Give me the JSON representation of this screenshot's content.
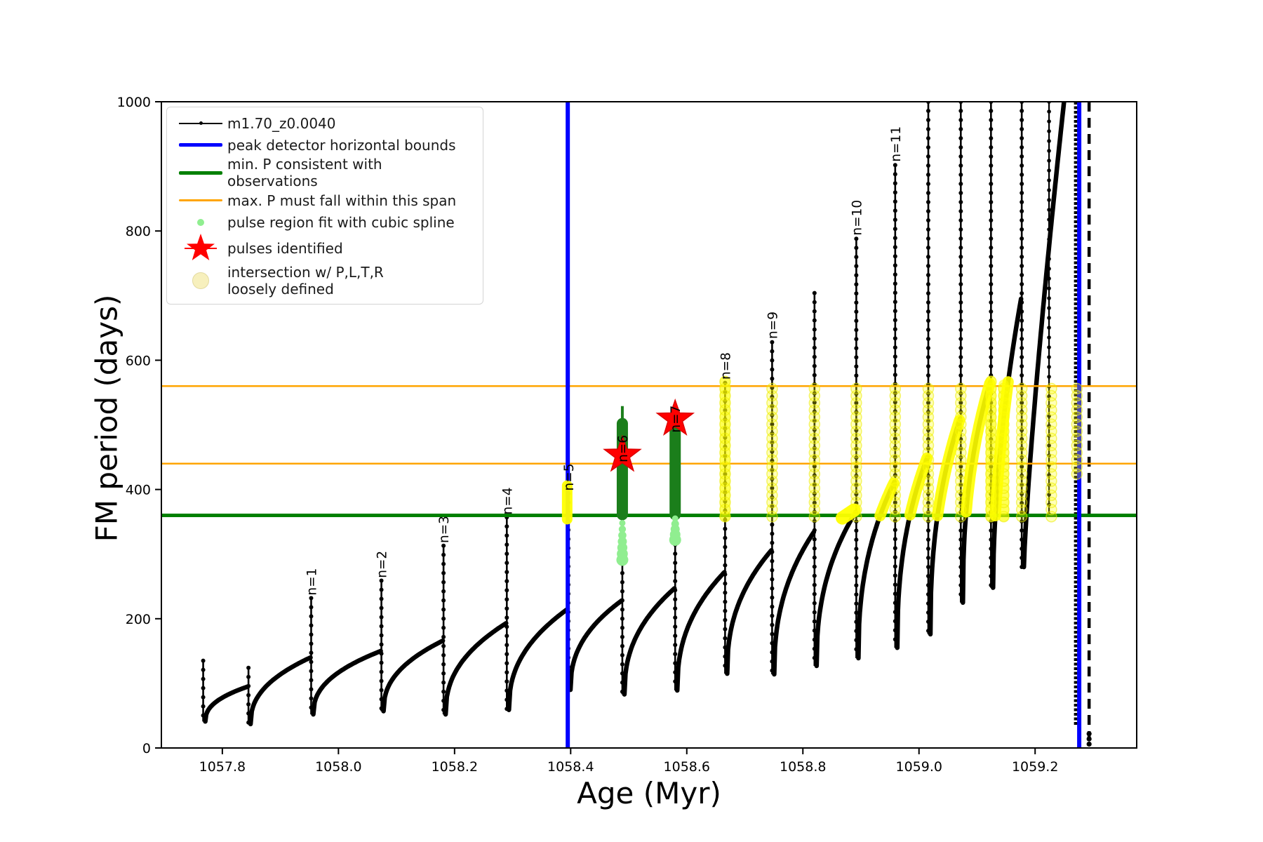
{
  "colors": {
    "black": "#000000",
    "blue": "#0000ff",
    "green": "#008000",
    "dark_green": "#1b7e1b",
    "light_green": "#90ee90",
    "orange": "#ffa500",
    "red": "#ff0000",
    "yellow": "#ffff00",
    "pale_yellow": "#f7f0bd"
  },
  "chart_data": {
    "type": "scatter",
    "title": "",
    "xlabel": "Age (Myr)",
    "ylabel": "FM period (days)",
    "xlim": [
      1057.695,
      1059.375
    ],
    "ylim": [
      0,
      1000
    ],
    "grid": false,
    "x_ticks": [
      1057.8,
      1058.0,
      1058.2,
      1058.4,
      1058.6,
      1058.8,
      1059.0,
      1059.2
    ],
    "x_tick_labels": [
      "1057.8",
      "1058.0",
      "1058.2",
      "1058.4",
      "1058.6",
      "1058.8",
      "1059.0",
      "1059.2"
    ],
    "y_ticks": [
      0,
      200,
      400,
      600,
      800,
      1000
    ],
    "y_tick_labels": [
      "0",
      "200",
      "400",
      "600",
      "800",
      "1000"
    ],
    "series_label": "m1.70_z0.0040",
    "hline_green_min_P": 360,
    "hlines_orange_max_P_span": [
      440,
      560
    ],
    "vlines_blue_peak_bounds": [
      1058.395,
      1059.276
    ],
    "pulse_cycles": [
      {
        "x": 1057.767,
        "top": 135,
        "min": 41,
        "rise_to": 95
      },
      {
        "x": 1057.845,
        "top": 124,
        "min": 37,
        "rise_to": 140
      },
      {
        "x": 1057.953,
        "top": 232,
        "min": 52,
        "rise_to": 150,
        "label": "n=1",
        "label_y": 236
      },
      {
        "x": 1058.074,
        "top": 259,
        "min": 57,
        "rise_to": 166,
        "label": "n=2",
        "label_y": 263
      },
      {
        "x": 1058.181,
        "top": 313,
        "min": 52,
        "rise_to": 193,
        "label": "n=3",
        "label_y": 317
      },
      {
        "x": 1058.29,
        "top": 357,
        "min": 59,
        "rise_to": 215,
        "label": "n=4",
        "label_y": 361
      },
      {
        "x": 1058.396,
        "top": 408,
        "min": 90,
        "rise_to": 228,
        "label": "n=5",
        "label_y": 398
      },
      {
        "x": 1058.489,
        "top": 440,
        "min": 83,
        "rise_to": 247,
        "label": "n=6",
        "label_y": 442
      },
      {
        "x": 1058.58,
        "top": 470,
        "min": 89,
        "rise_to": 272,
        "label": "n=7",
        "label_y": 488
      },
      {
        "x": 1058.666,
        "top": 565,
        "min": 115,
        "rise_to": 306,
        "label": "n=8",
        "label_y": 570
      },
      {
        "x": 1058.747,
        "top": 628,
        "min": 114,
        "rise_to": 334,
        "label": "n=9",
        "label_y": 633
      },
      {
        "x": 1058.82,
        "top": 704,
        "min": 127,
        "rise_to": 365
      },
      {
        "x": 1058.892,
        "top": 788,
        "min": 139,
        "rise_to": 412,
        "label": "n=10",
        "label_y": 793
      },
      {
        "x": 1058.959,
        "top": 902,
        "min": 155,
        "rise_to": 451,
        "label": "n=11",
        "label_y": 907
      },
      {
        "x": 1059.016,
        "top": 1000,
        "min": 176,
        "rise_to": 510
      },
      {
        "x": 1059.072,
        "top": 1000,
        "min": 225,
        "rise_to": 567
      },
      {
        "x": 1059.124,
        "top": 1000,
        "min": 248,
        "rise_to": 695,
        "exp": 0.55
      },
      {
        "x": 1059.177,
        "top": 1000,
        "min": 280,
        "rise_to": 1000,
        "exp": 0.8,
        "end_x": 1059.251
      }
    ],
    "tail_verticals": [
      {
        "x": 1059.224,
        "from": 358,
        "to": 1000,
        "style": "dotline"
      },
      {
        "x": 1059.27,
        "from": 35,
        "to": 1000,
        "style": "dense"
      },
      {
        "x": 1059.293,
        "from": 5,
        "to": 1000,
        "style": "dashed"
      }
    ],
    "end_dots": {
      "x": 1059.293,
      "values": [
        6,
        14,
        22
      ]
    },
    "green_pulse_columns": [
      {
        "x": 1058.489,
        "from": 361,
        "to": 502,
        "stem_to": 529,
        "dots_from": 348,
        "dots_to": 291,
        "n_dots": 7
      },
      {
        "x": 1058.58,
        "from": 361,
        "to": 502,
        "stem_to": 525,
        "dots_from": 355,
        "dots_to": 322,
        "n_dots": 5
      }
    ],
    "stars_pulses_identified": [
      {
        "x": 1058.489,
        "y": 453
      },
      {
        "x": 1058.58,
        "y": 509
      }
    ],
    "yellow_columns": [
      {
        "x": 1058.666,
        "from": 358,
        "to": 567,
        "thick": true
      },
      {
        "x": 1058.747,
        "from": 358,
        "to": 560
      },
      {
        "x": 1058.82,
        "from": 358,
        "to": 560
      },
      {
        "x": 1058.892,
        "from": 358,
        "to": 560
      },
      {
        "x": 1058.959,
        "from": 358,
        "to": 560
      },
      {
        "x": 1059.016,
        "from": 358,
        "to": 560
      },
      {
        "x": 1059.072,
        "from": 358,
        "to": 560
      },
      {
        "x": 1059.124,
        "from": 358,
        "to": 568,
        "thick": true
      },
      {
        "x": 1059.146,
        "from": 358,
        "to": 562,
        "thick": true
      },
      {
        "x": 1059.177,
        "from": 358,
        "to": 560
      },
      {
        "x": 1059.228,
        "from": 358,
        "to": 562
      },
      {
        "x": 1059.272,
        "from": 424,
        "to": 565
      }
    ],
    "yellow_arcs": [
      {
        "x1": 1058.892,
        "x2": 1058.959,
        "min": 139,
        "rise": 412,
        "cap": 412
      },
      {
        "x1": 1058.959,
        "x2": 1059.016,
        "min": 155,
        "rise": 451,
        "cap": 451
      },
      {
        "x1": 1059.016,
        "x2": 1059.072,
        "min": 176,
        "rise": 510,
        "cap": 510
      },
      {
        "x1": 1059.072,
        "x2": 1059.124,
        "min": 225,
        "rise": 567,
        "cap": 565
      },
      {
        "x1": 1059.124,
        "x2": 1059.177,
        "min": 248,
        "rise": 695,
        "cap": 570,
        "exp": 0.55
      }
    ],
    "yellow_blobs": [
      {
        "x1": 1058.394,
        "y1": 354,
        "x2": 1058.394,
        "y2": 406,
        "w": 15
      },
      {
        "x1": 1058.868,
        "y1": 356,
        "x2": 1058.888,
        "y2": 368,
        "w": 19
      },
      {
        "x1": 1058.489,
        "y1": 462,
        "x2": 1058.489,
        "y2": 503,
        "w": 11
      },
      {
        "x1": 1058.58,
        "y1": 483,
        "x2": 1058.58,
        "y2": 513,
        "w": 11
      }
    ]
  },
  "legend": {
    "items": [
      {
        "marker": "line-dot",
        "color": "#000000",
        "label": "m1.70_z0.0040"
      },
      {
        "marker": "thick-line",
        "color": "#0000ff",
        "label": "peak detector horizontal bounds"
      },
      {
        "marker": "thick-line",
        "color": "#008000",
        "label": "min. P consistent with observations"
      },
      {
        "marker": "line",
        "color": "#ffa500",
        "label": "max. P must fall within this span"
      },
      {
        "marker": "small-dot",
        "color": "#90ee90",
        "label": "pulse region fit with cubic spline"
      },
      {
        "marker": "star",
        "color": "#ff0000",
        "label": "pulses identified"
      },
      {
        "marker": "big-dot",
        "color": "#f7f0bd",
        "label": "intersection w/ P,L,T,R",
        "label2": "loosely defined"
      }
    ]
  }
}
